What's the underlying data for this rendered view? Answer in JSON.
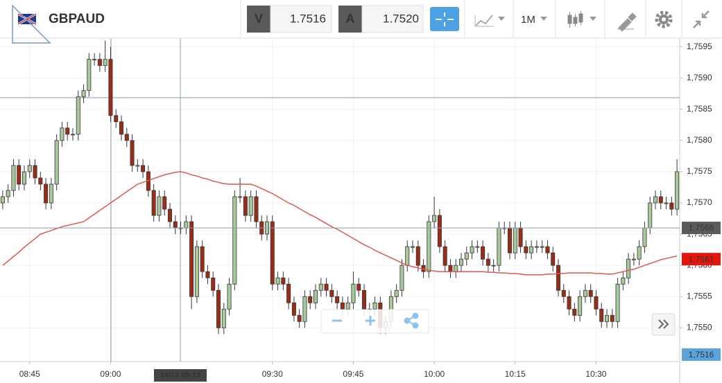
{
  "toolbar": {
    "symbol": "GBPAUD",
    "bid_label": "V",
    "bid": "1.7516",
    "ask_label": "A",
    "ask": "1.7520",
    "timeframe": "1M"
  },
  "chart_data": {
    "type": "candlestick",
    "categories": [
      null,
      null,
      null,
      null,
      null,
      "08:45",
      null,
      null,
      null,
      null,
      null,
      null,
      null,
      null,
      null,
      null,
      null,
      null,
      null,
      null,
      "09:00",
      null,
      null,
      null,
      null,
      null,
      null,
      null,
      null,
      null,
      null,
      null,
      null,
      null,
      null,
      null,
      null,
      null,
      null,
      null,
      null,
      null,
      null,
      null,
      null,
      null,
      null,
      null,
      null,
      null,
      "09:30",
      null,
      null,
      null,
      null,
      null,
      null,
      null,
      null,
      null,
      null,
      null,
      null,
      null,
      null,
      "09:45",
      null,
      null,
      null,
      null,
      null,
      null,
      null,
      null,
      null,
      null,
      null,
      null,
      null,
      null,
      "10:00",
      null,
      null,
      null,
      null,
      null,
      null,
      null,
      null,
      null,
      null,
      null,
      null,
      null,
      null,
      "10:15",
      null,
      null,
      null,
      null,
      null,
      null,
      null,
      null,
      null,
      null,
      null,
      null,
      null,
      null,
      "10:30",
      null,
      null,
      null,
      null,
      null,
      null,
      null,
      null,
      null,
      null,
      null,
      null,
      null,
      null,
      null
    ],
    "open": [
      1.757,
      1.7571,
      1.7572,
      1.7576,
      1.7573,
      1.7575,
      1.7576,
      1.7574,
      1.7573,
      1.757,
      1.7573,
      1.758,
      1.7582,
      1.7581,
      1.7581,
      1.7587,
      1.7588,
      1.7593,
      1.7593,
      1.7592,
      1.7593,
      1.7584,
      1.7583,
      1.7581,
      1.758,
      1.7576,
      1.7576,
      1.7575,
      1.7572,
      1.7568,
      1.7571,
      1.7569,
      1.7567,
      1.7566,
      1.7566,
      1.7567,
      1.7555,
      1.7563,
      1.7559,
      1.7558,
      1.7556,
      1.755,
      1.7553,
      1.7557,
      1.7571,
      1.7571,
      1.7568,
      1.7571,
      1.7567,
      1.7565,
      1.7567,
      1.7557,
      1.7558,
      1.7557,
      1.7554,
      1.7552,
      1.7551,
      1.7555,
      1.7554,
      1.7556,
      1.7557,
      1.7556,
      1.7555,
      1.7554,
      1.7553,
      1.7554,
      1.7557,
      1.7556,
      1.7553,
      1.7553,
      1.7554,
      1.755,
      1.7551,
      1.7555,
      1.7556,
      1.756,
      1.7563,
      1.7563,
      1.756,
      1.7559,
      1.7567,
      1.7568,
      1.7563,
      1.756,
      1.7559,
      1.756,
      1.7561,
      1.7562,
      1.7563,
      1.7563,
      1.7561,
      1.756,
      1.756,
      1.7566,
      1.7566,
      1.7562,
      1.7566,
      1.7563,
      1.7562,
      1.7563,
      1.7563,
      1.7563,
      1.7562,
      1.756,
      1.7556,
      1.7555,
      1.7553,
      1.7552,
      1.7555,
      1.7556,
      1.7555,
      1.7553,
      1.7551,
      1.7552,
      1.7551,
      1.7557,
      1.7558,
      1.7561,
      1.7561,
      1.7563,
      1.7566,
      1.757,
      1.7571,
      1.757,
      1.757,
      1.7569
    ],
    "high": [
      1.7572,
      1.7573,
      1.7577,
      1.7577,
      1.7576,
      1.7577,
      1.7577,
      1.7575,
      1.7574,
      1.7574,
      1.7581,
      1.7583,
      1.7583,
      1.7582,
      1.7588,
      1.7589,
      1.7594,
      1.7594,
      1.7594,
      1.7596,
      1.7595,
      1.7585,
      1.7584,
      1.7582,
      1.7581,
      1.7577,
      1.7577,
      1.7576,
      1.7573,
      1.7572,
      1.7572,
      1.757,
      1.7568,
      1.7567,
      1.7568,
      1.7568,
      1.7564,
      1.7564,
      1.756,
      1.7559,
      1.7557,
      1.7554,
      1.7558,
      1.7572,
      1.7574,
      1.7572,
      1.7572,
      1.7572,
      1.7568,
      1.7568,
      1.7568,
      1.7559,
      1.7559,
      1.7558,
      1.7555,
      1.7553,
      1.7556,
      1.7556,
      1.7557,
      1.7558,
      1.7558,
      1.7557,
      1.7556,
      1.7555,
      1.7555,
      1.7559,
      1.7558,
      1.7557,
      1.7554,
      1.7555,
      1.7555,
      1.7552,
      1.7556,
      1.7557,
      1.7561,
      1.7564,
      1.7564,
      1.7564,
      1.7561,
      1.7568,
      1.7571,
      1.7569,
      1.7564,
      1.7561,
      1.7561,
      1.7562,
      1.7563,
      1.7564,
      1.7564,
      1.7564,
      1.7562,
      1.7561,
      1.7567,
      1.7567,
      1.7567,
      1.7567,
      1.7567,
      1.7564,
      1.7564,
      1.7564,
      1.7564,
      1.7564,
      1.7563,
      1.7561,
      1.7557,
      1.7556,
      1.7554,
      1.7556,
      1.7557,
      1.7557,
      1.7556,
      1.7554,
      1.7553,
      1.7553,
      1.7558,
      1.7559,
      1.7562,
      1.7562,
      1.7564,
      1.7567,
      1.7571,
      1.7572,
      1.7572,
      1.7571,
      1.7571,
      1.7577
    ],
    "low": [
      1.7569,
      1.757,
      1.7571,
      1.7572,
      1.7572,
      1.7574,
      1.7573,
      1.7572,
      1.7569,
      1.7569,
      1.7572,
      1.7579,
      1.758,
      1.758,
      1.758,
      1.7586,
      1.7587,
      1.7592,
      1.7591,
      1.7591,
      1.7583,
      1.7582,
      1.758,
      1.7579,
      1.7575,
      1.7575,
      1.7574,
      1.7571,
      1.7567,
      1.7567,
      1.7568,
      1.7566,
      1.7565,
      1.7565,
      1.7565,
      1.7553,
      1.7554,
      1.7558,
      1.7557,
      1.7555,
      1.7549,
      1.7549,
      1.7552,
      1.7556,
      1.757,
      1.7567,
      1.7567,
      1.7566,
      1.7564,
      1.7564,
      1.7556,
      1.7556,
      1.7556,
      1.7553,
      1.7551,
      1.755,
      1.755,
      1.7553,
      1.7553,
      1.7555,
      1.7555,
      1.7554,
      1.7553,
      1.7552,
      1.7552,
      1.7553,
      1.7555,
      1.7552,
      1.7552,
      1.7552,
      1.7549,
      1.7549,
      1.755,
      1.7554,
      1.7555,
      1.7559,
      1.7562,
      1.7559,
      1.7558,
      1.7558,
      1.7566,
      1.7562,
      1.7559,
      1.7558,
      1.7558,
      1.7559,
      1.756,
      1.7561,
      1.7562,
      1.756,
      1.7559,
      1.7559,
      1.7559,
      1.7565,
      1.7561,
      1.7561,
      1.7562,
      1.7561,
      1.7561,
      1.7562,
      1.7562,
      1.7561,
      1.7559,
      1.7555,
      1.7554,
      1.7552,
      1.7551,
      1.7551,
      1.7554,
      1.7554,
      1.7552,
      1.755,
      1.755,
      1.755,
      1.755,
      1.7556,
      1.7557,
      1.756,
      1.756,
      1.7562,
      1.7565,
      1.7569,
      1.7569,
      1.7569,
      1.7568,
      1.7568
    ],
    "close": [
      1.7571,
      1.7572,
      1.7576,
      1.7573,
      1.7575,
      1.7576,
      1.7574,
      1.7573,
      1.757,
      1.7573,
      1.758,
      1.7582,
      1.7581,
      1.7581,
      1.7587,
      1.7588,
      1.7593,
      1.7593,
      1.7592,
      1.7593,
      1.7584,
      1.7583,
      1.7581,
      1.758,
      1.7576,
      1.7576,
      1.7575,
      1.7572,
      1.7568,
      1.7571,
      1.7569,
      1.7567,
      1.7566,
      1.7566,
      1.7567,
      1.7555,
      1.7563,
      1.7559,
      1.7558,
      1.7556,
      1.755,
      1.7553,
      1.7557,
      1.7571,
      1.7571,
      1.7568,
      1.7571,
      1.7567,
      1.7565,
      1.7567,
      1.7557,
      1.7558,
      1.7557,
      1.7554,
      1.7552,
      1.7551,
      1.7555,
      1.7554,
      1.7556,
      1.7557,
      1.7556,
      1.7555,
      1.7554,
      1.7553,
      1.7554,
      1.7557,
      1.7556,
      1.7553,
      1.7553,
      1.7554,
      1.755,
      1.7551,
      1.7555,
      1.7556,
      1.756,
      1.7563,
      1.7563,
      1.756,
      1.7559,
      1.7567,
      1.7568,
      1.7563,
      1.756,
      1.7559,
      1.756,
      1.7561,
      1.7562,
      1.7563,
      1.7563,
      1.7561,
      1.756,
      1.756,
      1.7566,
      1.7566,
      1.7562,
      1.7566,
      1.7563,
      1.7562,
      1.7563,
      1.7563,
      1.7563,
      1.7562,
      1.756,
      1.7556,
      1.7555,
      1.7553,
      1.7552,
      1.7555,
      1.7556,
      1.7555,
      1.7553,
      1.7551,
      1.7552,
      1.7551,
      1.7557,
      1.7558,
      1.7561,
      1.7561,
      1.7563,
      1.7566,
      1.757,
      1.7571,
      1.757,
      1.757,
      1.7569,
      1.7575
    ],
    "up_color": "#a9c99b",
    "down_color": "#9b2d18",
    "moving_average": {
      "color": "#e0574f",
      "values": [
        1.756,
        1.75607,
        1.75614,
        1.75621,
        1.75629,
        1.75636,
        1.75643,
        1.7565,
        1.75653,
        1.75656,
        1.75659,
        1.75662,
        1.75664,
        1.75666,
        1.75668,
        1.7567,
        1.75676,
        1.75682,
        1.75688,
        1.75694,
        1.757,
        1.75706,
        1.75712,
        1.75718,
        1.75724,
        1.7573,
        1.75733,
        1.75736,
        1.75739,
        1.75742,
        1.75745,
        1.75747,
        1.75749,
        1.7575,
        1.75748,
        1.75745,
        1.75743,
        1.7574,
        1.75738,
        1.75735,
        1.75733,
        1.75731,
        1.7573,
        1.7573,
        1.7573,
        1.7573,
        1.7573,
        1.75727,
        1.75723,
        1.75719,
        1.75715,
        1.7571,
        1.75705,
        1.757,
        1.75696,
        1.75691,
        1.75686,
        1.75681,
        1.75677,
        1.75672,
        1.75667,
        1.75662,
        1.75658,
        1.75653,
        1.75648,
        1.75643,
        1.75638,
        1.75633,
        1.75629,
        1.75624,
        1.7562,
        1.75616,
        1.75612,
        1.75608,
        1.75604,
        1.756,
        1.75598,
        1.75596,
        1.75594,
        1.75592,
        1.75591,
        1.7559,
        1.7559,
        1.7559,
        1.7559,
        1.7559,
        1.7559,
        1.7559,
        1.7559,
        1.7559,
        1.75589,
        1.75589,
        1.75588,
        1.75588,
        1.75587,
        1.75587,
        1.75586,
        1.75585,
        1.75585,
        1.75585,
        1.75585,
        1.75586,
        1.75586,
        1.75587,
        1.75587,
        1.75588,
        1.75588,
        1.75588,
        1.75588,
        1.75588,
        1.75587,
        1.75587,
        1.75586,
        1.75586,
        1.75588,
        1.7559,
        1.75592,
        1.75594,
        1.75597,
        1.756,
        1.75603,
        1.75606,
        1.75609,
        1.75611,
        1.75613,
        1.75615
      ]
    },
    "ylim": [
      1.75446,
      1.75964
    ],
    "yticks": [
      {
        "value": 1.755,
        "label": "1,7550"
      },
      {
        "value": 1.7555,
        "label": "1,7555"
      },
      {
        "value": 1.756,
        "label": "1,7560"
      },
      {
        "value": 1.7565,
        "label": "1,7565"
      },
      {
        "value": 1.757,
        "label": "1,7570"
      },
      {
        "value": 1.7575,
        "label": "1,7575"
      },
      {
        "value": 1.758,
        "label": "1,7580"
      },
      {
        "value": 1.7585,
        "label": "1,7585"
      },
      {
        "value": 1.759,
        "label": "1,7590"
      },
      {
        "value": 1.7595,
        "label": "1,7595"
      }
    ],
    "grid": true,
    "crosshair_time": "14/12 09:13",
    "price_markers": [
      {
        "value": 1.7566,
        "label": "1,7566",
        "color": "#5b5b5b"
      },
      {
        "value": 1.7561,
        "label": "1,7561",
        "color": "#e8140c"
      },
      {
        "value": 1.7516,
        "label": "1,7516",
        "color": "#5aa3dc"
      }
    ]
  }
}
